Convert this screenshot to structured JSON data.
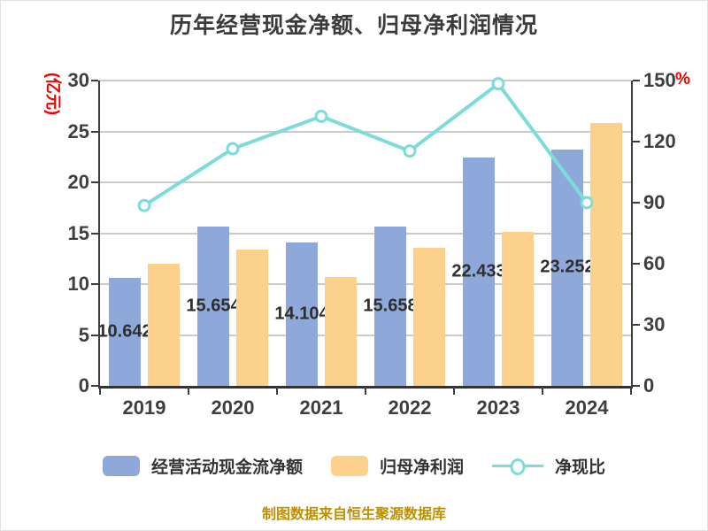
{
  "title": "历年经营现金净额、归母净利润情况",
  "footer": "制图数据来自恒生聚源数据库",
  "left_axis": {
    "unit": "(亿元)",
    "ticks": [
      0,
      5,
      10,
      15,
      20,
      25,
      30
    ],
    "range": [
      0,
      30
    ]
  },
  "right_axis": {
    "unit": "%",
    "ticks": [
      0,
      30,
      60,
      90,
      120,
      150
    ],
    "range": [
      0,
      150
    ]
  },
  "legend": [
    {
      "label": "经营活动现金流净额",
      "swatch": "bar",
      "color": "#8ea9d9"
    },
    {
      "label": "归母净利润",
      "swatch": "bar",
      "color": "#fbd18c"
    },
    {
      "label": "净现比",
      "swatch": "line",
      "color": "#7cdcd9"
    }
  ],
  "colors": {
    "bar_blue": "#8ea9d9",
    "bar_orange": "#fbd18c",
    "line_teal": "#7cdcd9",
    "marker_fill": "#ffffff",
    "grid": "#cbcbcb",
    "axis": "#3d3d3d",
    "axis_unit_red": "#f00000",
    "title_text": "#3b3b3b",
    "footer_gold": "#bf9000"
  },
  "chart_data": {
    "type": "bar",
    "title": "历年经营现金净额、归母净利润情况",
    "categories": [
      "2019",
      "2020",
      "2021",
      "2022",
      "2023",
      "2024"
    ],
    "series": [
      {
        "name": "经营活动现金流净额",
        "type": "bar",
        "axis": "left",
        "color": "#8ea9d9",
        "values": [
          10.642,
          15.654,
          14.104,
          15.658,
          22.433,
          23.252
        ],
        "labels": [
          "10.642",
          "15.654",
          "14.104",
          "15.658",
          "22.433",
          "23.252"
        ]
      },
      {
        "name": "归母净利润",
        "type": "bar",
        "axis": "left",
        "color": "#fbd18c",
        "values": [
          12.0,
          13.4,
          10.7,
          13.6,
          15.1,
          25.8
        ]
      },
      {
        "name": "净现比",
        "type": "line",
        "axis": "right",
        "color": "#7cdcd9",
        "values": [
          88.6,
          116.5,
          132.4,
          115.4,
          148.4,
          90.0
        ]
      }
    ],
    "ylabel_left": "(亿元)",
    "ylabel_right": "%",
    "ylim_left": [
      0,
      30
    ],
    "ylim_right": [
      0,
      150
    ],
    "grid": true,
    "legend_position": "bottom"
  }
}
